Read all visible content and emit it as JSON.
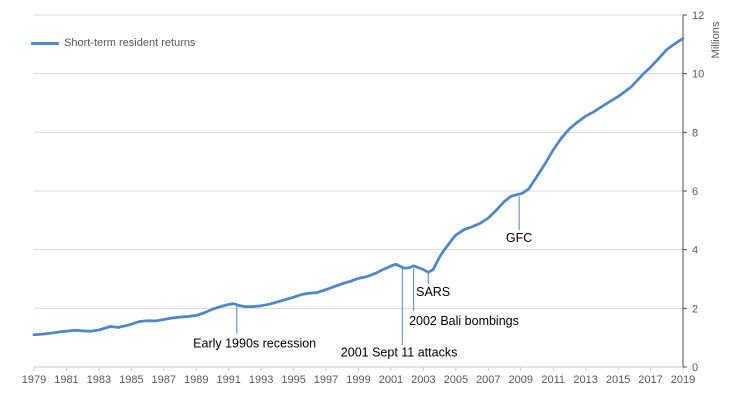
{
  "legend": {
    "label": "Short-term resident returns"
  },
  "y_axis_title": "Millions",
  "chart_data": {
    "type": "line",
    "title": "",
    "xlabel": "",
    "ylabel_right": "Millions",
    "grid": "horizontal",
    "legend_position": "top-left",
    "x_range": [
      1979,
      2019
    ],
    "ylim": [
      0,
      12
    ],
    "x_tick_step_years": 2,
    "x_ticks": [
      "1979",
      "1981",
      "1983",
      "1985",
      "1987",
      "1989",
      "1991",
      "1993",
      "1995",
      "1997",
      "1999",
      "2001",
      "2003",
      "2005",
      "2007",
      "2009",
      "2011",
      "2013",
      "2015",
      "2017",
      "2019"
    ],
    "y_ticks": [
      0,
      2,
      4,
      6,
      8,
      10,
      12
    ],
    "colors": {
      "line": "#4e86c8",
      "grid": "#d9d9d9",
      "axis_x": "#c9c9c9",
      "axis_y": "#4d4d4d",
      "tick_label": "#595959",
      "annotation": "#000000"
    },
    "series": [
      {
        "name": "Short-term resident returns",
        "units": "millions",
        "points": [
          [
            1979.0,
            1.1
          ],
          [
            1979.5,
            1.12
          ],
          [
            1980.0,
            1.15
          ],
          [
            1980.6,
            1.2
          ],
          [
            1981.0,
            1.22
          ],
          [
            1981.5,
            1.25
          ],
          [
            1982.0,
            1.23
          ],
          [
            1982.5,
            1.22
          ],
          [
            1983.0,
            1.26
          ],
          [
            1983.7,
            1.38
          ],
          [
            1984.2,
            1.35
          ],
          [
            1984.6,
            1.4
          ],
          [
            1985.0,
            1.46
          ],
          [
            1985.5,
            1.55
          ],
          [
            1986.0,
            1.58
          ],
          [
            1986.5,
            1.57
          ],
          [
            1987.0,
            1.62
          ],
          [
            1987.5,
            1.67
          ],
          [
            1988.0,
            1.7
          ],
          [
            1988.5,
            1.72
          ],
          [
            1989.0,
            1.76
          ],
          [
            1989.5,
            1.85
          ],
          [
            1990.0,
            1.97
          ],
          [
            1990.5,
            2.06
          ],
          [
            1991.0,
            2.13
          ],
          [
            1991.3,
            2.16
          ],
          [
            1991.6,
            2.1
          ],
          [
            1992.0,
            2.06
          ],
          [
            1992.5,
            2.06
          ],
          [
            1993.0,
            2.09
          ],
          [
            1993.5,
            2.14
          ],
          [
            1994.0,
            2.22
          ],
          [
            1994.5,
            2.3
          ],
          [
            1995.0,
            2.38
          ],
          [
            1995.5,
            2.47
          ],
          [
            1996.0,
            2.52
          ],
          [
            1996.4,
            2.53
          ],
          [
            1997.0,
            2.64
          ],
          [
            1997.5,
            2.74
          ],
          [
            1998.0,
            2.84
          ],
          [
            1998.5,
            2.92
          ],
          [
            1999.0,
            3.02
          ],
          [
            1999.5,
            3.08
          ],
          [
            2000.0,
            3.18
          ],
          [
            2000.5,
            3.32
          ],
          [
            2001.0,
            3.44
          ],
          [
            2001.3,
            3.5
          ],
          [
            2001.8,
            3.37
          ],
          [
            2002.1,
            3.38
          ],
          [
            2002.4,
            3.45
          ],
          [
            2002.8,
            3.36
          ],
          [
            2003.0,
            3.32
          ],
          [
            2003.3,
            3.23
          ],
          [
            2003.6,
            3.32
          ],
          [
            2004.0,
            3.75
          ],
          [
            2004.3,
            4.0
          ],
          [
            2004.7,
            4.3
          ],
          [
            2005.0,
            4.5
          ],
          [
            2005.5,
            4.68
          ],
          [
            2006.0,
            4.78
          ],
          [
            2006.5,
            4.9
          ],
          [
            2007.0,
            5.08
          ],
          [
            2007.5,
            5.35
          ],
          [
            2008.0,
            5.65
          ],
          [
            2008.4,
            5.82
          ],
          [
            2008.8,
            5.88
          ],
          [
            2009.1,
            5.92
          ],
          [
            2009.5,
            6.08
          ],
          [
            2010.0,
            6.5
          ],
          [
            2010.5,
            6.93
          ],
          [
            2011.0,
            7.4
          ],
          [
            2011.5,
            7.8
          ],
          [
            2012.0,
            8.12
          ],
          [
            2012.5,
            8.35
          ],
          [
            2013.0,
            8.55
          ],
          [
            2013.5,
            8.7
          ],
          [
            2014.0,
            8.88
          ],
          [
            2014.5,
            9.05
          ],
          [
            2015.0,
            9.22
          ],
          [
            2015.4,
            9.38
          ],
          [
            2015.8,
            9.55
          ],
          [
            2016.2,
            9.78
          ],
          [
            2016.6,
            10.02
          ],
          [
            2017.0,
            10.22
          ],
          [
            2017.5,
            10.52
          ],
          [
            2018.0,
            10.82
          ],
          [
            2018.5,
            11.02
          ],
          [
            2019.0,
            11.2
          ]
        ]
      }
    ],
    "annotations": [
      {
        "label": "Early 1990s recession",
        "leader": {
          "year": 1991.5,
          "from": 2.11,
          "to": 1.13
        },
        "text": {
          "year": 1992.6,
          "value": 0.82
        }
      },
      {
        "label": "2001 Sept 11 attacks",
        "leader": {
          "year": 2001.7,
          "from": 3.4,
          "to": 0.75
        },
        "text": {
          "year": 2001.5,
          "value": 0.51
        }
      },
      {
        "label": "2002 Bali bombings",
        "leader": {
          "year": 2002.4,
          "from": 3.37,
          "to": 1.91
        },
        "text": {
          "year": 2005.5,
          "value": 1.58
        }
      },
      {
        "label": "SARS",
        "leader": {
          "year": 2003.3,
          "from": 3.19,
          "to": 2.83
        },
        "text": {
          "year": 2003.6,
          "value": 2.57
        }
      },
      {
        "label": "GFC",
        "leader": {
          "year": 2008.9,
          "from": 5.82,
          "to": 4.67
        },
        "text": {
          "year": 2008.9,
          "value": 4.41
        }
      }
    ]
  }
}
